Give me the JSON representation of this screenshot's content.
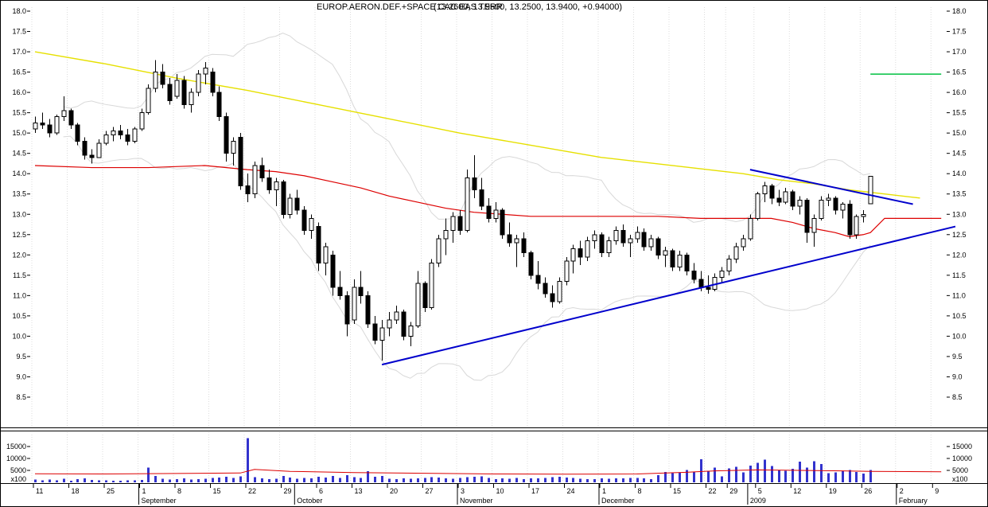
{
  "title": {
    "name": "EUROP.AERON.DEF.+SPACE CAC EAS TERR",
    "ohlc": "(13.2600, 13.9500, 13.2500, 13.9400, +0.94000)"
  },
  "colors": {
    "background": "#ffffff",
    "frame": "#000000",
    "grid": "#dcdcdc",
    "candle_up": "#ffffff",
    "candle_down": "#000000",
    "candle_stroke": "#000000",
    "ma_red": "#dd0000",
    "ma_yellow": "#e6e000",
    "bollinger": "#d8d8d8",
    "trendline_blue": "#0000cc",
    "green_line": "#00c040",
    "volume_bar": "#3232cd",
    "volume_ma": "#dd0000"
  },
  "chart_data": {
    "type": "candlestick",
    "title": "EUROP.AERON.DEF.+SPACE CAC EAS TERR (13.2600, 13.9500, 13.2500, 13.9400, +0.94000)",
    "legend": "none",
    "grid": "vertical-weekly-dotted",
    "price_axis": {
      "ticks": [
        18.0,
        17.5,
        17.0,
        16.5,
        16.0,
        15.5,
        15.0,
        14.5,
        14.0,
        13.5,
        13.0,
        12.5,
        12.0,
        11.5,
        11.0,
        10.5,
        10.0,
        9.5,
        9.0,
        8.5
      ],
      "range": [
        7.8,
        18.1
      ],
      "sides": [
        "left",
        "right"
      ]
    },
    "volume_axis": {
      "ticks": [
        15000,
        10000,
        5000
      ],
      "multiplier": "x100",
      "range": [
        0,
        21000
      ],
      "sides": [
        "left",
        "right"
      ]
    },
    "x_axis": {
      "week_tick_days": [
        0,
        5,
        10,
        15,
        20,
        25,
        30,
        35,
        40,
        45,
        50,
        55,
        60,
        65,
        70,
        75,
        80,
        85,
        90,
        95,
        98,
        102,
        107,
        112,
        117,
        122,
        127
      ],
      "week_tick_labels": [
        "11",
        "18",
        "25",
        "1",
        "8",
        "15",
        "22",
        "29",
        "6",
        "13",
        "20",
        "27",
        "3",
        "10",
        "17",
        "24",
        "1",
        "8",
        "15",
        "22",
        "29",
        "5",
        "12",
        "19",
        "26",
        "2",
        "9"
      ],
      "month_label_days": [
        15,
        37,
        60,
        80,
        101,
        122
      ],
      "month_labels": [
        "September",
        "October",
        "November",
        "December",
        "2009",
        "February"
      ]
    },
    "candles": [
      [
        15.1,
        15.4,
        15.0,
        15.25,
        1200
      ],
      [
        15.25,
        15.5,
        15.1,
        15.2,
        900
      ],
      [
        15.2,
        15.35,
        14.9,
        15.0,
        1100
      ],
      [
        15.0,
        15.45,
        14.95,
        15.4,
        800
      ],
      [
        15.4,
        15.9,
        15.3,
        15.55,
        1500
      ],
      [
        15.55,
        15.6,
        15.1,
        15.2,
        700
      ],
      [
        15.2,
        15.25,
        14.7,
        14.8,
        1300
      ],
      [
        14.8,
        14.9,
        14.35,
        14.45,
        1600
      ],
      [
        14.45,
        14.6,
        14.25,
        14.4,
        1000
      ],
      [
        14.4,
        14.85,
        14.4,
        14.75,
        900
      ],
      [
        14.75,
        15.05,
        14.7,
        14.95,
        800
      ],
      [
        14.95,
        15.15,
        14.8,
        15.05,
        700
      ],
      [
        15.05,
        15.2,
        14.85,
        14.95,
        600
      ],
      [
        14.95,
        15.1,
        14.7,
        14.8,
        800
      ],
      [
        14.8,
        15.15,
        14.75,
        15.1,
        900
      ],
      [
        15.1,
        15.6,
        15.05,
        15.5,
        1000
      ],
      [
        15.5,
        16.2,
        15.45,
        16.1,
        6200
      ],
      [
        16.1,
        16.8,
        16.0,
        16.5,
        2600
      ],
      [
        16.5,
        16.7,
        16.1,
        16.2,
        1500
      ],
      [
        16.2,
        16.35,
        15.7,
        15.8,
        1200
      ],
      [
        15.9,
        16.45,
        15.85,
        16.3,
        1400
      ],
      [
        16.3,
        16.4,
        15.6,
        15.7,
        1700
      ],
      [
        15.7,
        16.1,
        15.5,
        16.0,
        1100
      ],
      [
        16.0,
        16.55,
        15.9,
        16.45,
        1300
      ],
      [
        16.45,
        16.75,
        16.2,
        16.6,
        1500
      ],
      [
        16.5,
        16.6,
        15.9,
        16.0,
        1800
      ],
      [
        16.0,
        16.15,
        15.3,
        15.4,
        2000
      ],
      [
        15.4,
        15.5,
        14.3,
        14.5,
        2300
      ],
      [
        14.5,
        14.9,
        14.2,
        14.8,
        1900
      ],
      [
        14.9,
        15.0,
        13.6,
        13.7,
        2500
      ],
      [
        13.7,
        14.0,
        13.3,
        13.5,
        18500
      ],
      [
        13.5,
        14.3,
        13.4,
        14.2,
        2200
      ],
      [
        14.2,
        14.4,
        13.8,
        13.9,
        1600
      ],
      [
        13.9,
        14.1,
        13.5,
        13.6,
        1400
      ],
      [
        13.6,
        13.9,
        13.2,
        13.8,
        1500
      ],
      [
        13.8,
        13.85,
        12.9,
        13.0,
        2600
      ],
      [
        13.0,
        13.5,
        12.9,
        13.4,
        2000
      ],
      [
        13.4,
        13.6,
        13.0,
        13.1,
        1500
      ],
      [
        13.1,
        13.2,
        12.5,
        12.6,
        1800
      ],
      [
        12.6,
        13.0,
        12.4,
        12.9,
        1600
      ],
      [
        12.7,
        12.8,
        11.6,
        11.8,
        2400
      ],
      [
        11.8,
        12.3,
        11.5,
        12.2,
        2000
      ],
      [
        12.0,
        12.1,
        11.0,
        11.2,
        2600
      ],
      [
        11.2,
        11.6,
        10.9,
        11.0,
        1900
      ],
      [
        11.0,
        11.1,
        10.0,
        10.3,
        3000
      ],
      [
        10.4,
        11.4,
        10.3,
        11.2,
        2200
      ],
      [
        11.2,
        11.6,
        10.8,
        11.0,
        1800
      ],
      [
        11.0,
        11.1,
        10.2,
        10.3,
        4600
      ],
      [
        10.3,
        10.5,
        9.8,
        9.9,
        2400
      ],
      [
        9.9,
        10.4,
        9.4,
        10.2,
        2600
      ],
      [
        10.2,
        10.6,
        10.0,
        10.4,
        1500
      ],
      [
        10.4,
        10.75,
        10.3,
        10.6,
        1300
      ],
      [
        10.6,
        10.65,
        9.9,
        10.0,
        1700
      ],
      [
        10.0,
        10.35,
        9.75,
        10.25,
        1500
      ],
      [
        10.25,
        11.6,
        10.2,
        11.3,
        1600
      ],
      [
        11.3,
        11.35,
        10.6,
        10.7,
        1800
      ],
      [
        10.7,
        11.9,
        10.65,
        11.8,
        2200
      ],
      [
        11.8,
        12.5,
        11.7,
        12.4,
        2000
      ],
      [
        12.4,
        12.9,
        12.0,
        12.6,
        1700
      ],
      [
        12.6,
        13.05,
        12.3,
        12.95,
        1500
      ],
      [
        12.95,
        13.1,
        12.5,
        12.6,
        1900
      ],
      [
        12.6,
        14.1,
        12.55,
        13.9,
        2100
      ],
      [
        13.9,
        14.45,
        13.4,
        13.6,
        2300
      ],
      [
        13.6,
        13.9,
        13.1,
        13.2,
        2500
      ],
      [
        13.2,
        13.4,
        12.8,
        12.9,
        1800
      ],
      [
        12.9,
        13.3,
        12.8,
        13.1,
        1400
      ],
      [
        13.1,
        13.15,
        12.4,
        12.5,
        1600
      ],
      [
        12.5,
        12.8,
        12.2,
        12.3,
        1500
      ],
      [
        12.3,
        12.5,
        11.7,
        12.4,
        1800
      ],
      [
        12.4,
        12.55,
        11.95,
        12.05,
        1400
      ],
      [
        12.05,
        12.1,
        11.4,
        11.5,
        1600
      ],
      [
        11.5,
        11.85,
        11.15,
        11.3,
        1700
      ],
      [
        11.3,
        11.45,
        10.95,
        11.05,
        1900
      ],
      [
        11.05,
        11.25,
        10.7,
        10.85,
        2100
      ],
      [
        10.85,
        11.45,
        10.8,
        11.35,
        2300
      ],
      [
        11.35,
        11.95,
        11.25,
        11.85,
        2000
      ],
      [
        11.85,
        12.25,
        11.55,
        12.15,
        1800
      ],
      [
        12.15,
        12.35,
        11.75,
        11.95,
        1500
      ],
      [
        11.95,
        12.45,
        11.85,
        12.35,
        1300
      ],
      [
        12.35,
        12.6,
        12.15,
        12.5,
        1400
      ],
      [
        12.5,
        12.55,
        11.95,
        12.05,
        1600
      ],
      [
        12.05,
        12.45,
        11.95,
        12.35,
        1500
      ],
      [
        12.35,
        12.7,
        12.25,
        12.6,
        1700
      ],
      [
        12.6,
        12.75,
        12.2,
        12.3,
        1600
      ],
      [
        12.3,
        12.5,
        11.95,
        12.4,
        1800
      ],
      [
        12.4,
        12.7,
        12.3,
        12.55,
        1900
      ],
      [
        12.55,
        12.65,
        12.1,
        12.2,
        1600
      ],
      [
        12.2,
        12.5,
        12.1,
        12.4,
        1400
      ],
      [
        12.4,
        12.45,
        11.9,
        12.0,
        3000
      ],
      [
        12.0,
        12.2,
        11.7,
        12.1,
        4400
      ],
      [
        12.1,
        12.15,
        11.6,
        11.7,
        3800
      ],
      [
        11.7,
        12.1,
        11.6,
        12.0,
        4000
      ],
      [
        12.0,
        12.05,
        11.5,
        11.6,
        5200
      ],
      [
        11.6,
        11.8,
        11.3,
        11.4,
        4400
      ],
      [
        11.4,
        11.6,
        11.1,
        11.2,
        9600
      ],
      [
        11.2,
        11.5,
        11.05,
        11.15,
        4800
      ],
      [
        11.15,
        11.55,
        11.1,
        11.45,
        6200
      ],
      [
        11.45,
        11.7,
        11.3,
        11.6,
        2500
      ],
      [
        11.6,
        12.0,
        11.5,
        11.9,
        5800
      ],
      [
        11.9,
        12.3,
        11.8,
        12.2,
        6500
      ],
      [
        12.2,
        12.5,
        12.1,
        12.4,
        4200
      ],
      [
        12.4,
        13.0,
        12.35,
        12.9,
        7000
      ],
      [
        12.9,
        13.55,
        12.85,
        13.5,
        8200
      ],
      [
        13.5,
        13.8,
        13.3,
        13.7,
        9500
      ],
      [
        13.7,
        13.75,
        13.25,
        13.4,
        6800
      ],
      [
        13.4,
        13.6,
        13.2,
        13.3,
        5200
      ],
      [
        13.3,
        13.65,
        13.25,
        13.55,
        4800
      ],
      [
        13.55,
        13.6,
        13.1,
        13.2,
        5600
      ],
      [
        13.2,
        13.45,
        13.0,
        13.35,
        8600
      ],
      [
        13.35,
        13.4,
        12.3,
        12.55,
        6200
      ],
      [
        12.55,
        13.0,
        12.2,
        12.9,
        8800
      ],
      [
        12.9,
        13.45,
        12.85,
        13.35,
        7600
      ],
      [
        13.35,
        13.5,
        13.2,
        13.4,
        3800
      ],
      [
        13.4,
        13.45,
        13.0,
        13.1,
        4200
      ],
      [
        13.1,
        13.3,
        12.9,
        13.25,
        4600
      ],
      [
        13.25,
        13.35,
        12.4,
        12.5,
        5200
      ],
      [
        12.5,
        13.0,
        12.4,
        12.95,
        4400
      ],
      [
        12.95,
        13.1,
        12.8,
        13.0,
        3600
      ],
      [
        13.26,
        13.95,
        13.25,
        13.94,
        5200
      ]
    ],
    "overlays": {
      "ma_red_points": [
        [
          0,
          14.2
        ],
        [
          8,
          14.15
        ],
        [
          16,
          14.15
        ],
        [
          24,
          14.2
        ],
        [
          30,
          14.1
        ],
        [
          34,
          14.05
        ],
        [
          38,
          13.95
        ],
        [
          42,
          13.8
        ],
        [
          46,
          13.65
        ],
        [
          50,
          13.45
        ],
        [
          54,
          13.3
        ],
        [
          58,
          13.15
        ],
        [
          62,
          13.05
        ],
        [
          66,
          13.0
        ],
        [
          70,
          12.95
        ],
        [
          76,
          12.95
        ],
        [
          82,
          12.95
        ],
        [
          88,
          12.95
        ],
        [
          94,
          12.9
        ],
        [
          100,
          12.9
        ],
        [
          104,
          12.9
        ],
        [
          107,
          12.8
        ],
        [
          110,
          12.65
        ],
        [
          113,
          12.55
        ],
        [
          115,
          12.45
        ],
        [
          117,
          12.5
        ],
        [
          118,
          12.55
        ],
        [
          120,
          12.9
        ],
        [
          128,
          12.9
        ]
      ],
      "ma_yellow_points": [
        [
          0,
          17.0
        ],
        [
          10,
          16.7
        ],
        [
          20,
          16.35
        ],
        [
          30,
          16.05
        ],
        [
          40,
          15.7
        ],
        [
          50,
          15.35
        ],
        [
          60,
          15.0
        ],
        [
          70,
          14.7
        ],
        [
          80,
          14.4
        ],
        [
          90,
          14.2
        ],
        [
          95,
          14.1
        ],
        [
          100,
          14.0
        ],
        [
          105,
          13.85
        ],
        [
          110,
          13.75
        ],
        [
          115,
          13.6
        ],
        [
          120,
          13.5
        ],
        [
          125,
          13.4
        ]
      ],
      "bollinger": {
        "period": 20,
        "stddev": 2
      },
      "trendlines": [
        {
          "name": "ascending-support",
          "d1": 49,
          "v1": 9.3,
          "d2": 130,
          "v2": 12.7
        },
        {
          "name": "descending-resistance",
          "d1": 101,
          "v1": 14.1,
          "d2": 124,
          "v2": 13.25
        }
      ],
      "green_level": {
        "d1": 118,
        "d2": 128,
        "value": 16.45
      },
      "volume_ma_points": [
        [
          0,
          3600
        ],
        [
          10,
          3500
        ],
        [
          20,
          3700
        ],
        [
          29,
          3900
        ],
        [
          31,
          5400
        ],
        [
          36,
          4600
        ],
        [
          45,
          4100
        ],
        [
          55,
          3800
        ],
        [
          65,
          3500
        ],
        [
          75,
          3400
        ],
        [
          85,
          3500
        ],
        [
          92,
          4200
        ],
        [
          96,
          4800
        ],
        [
          102,
          5200
        ],
        [
          108,
          5000
        ],
        [
          114,
          4800
        ],
        [
          118,
          4600
        ],
        [
          128,
          4400
        ]
      ]
    }
  }
}
